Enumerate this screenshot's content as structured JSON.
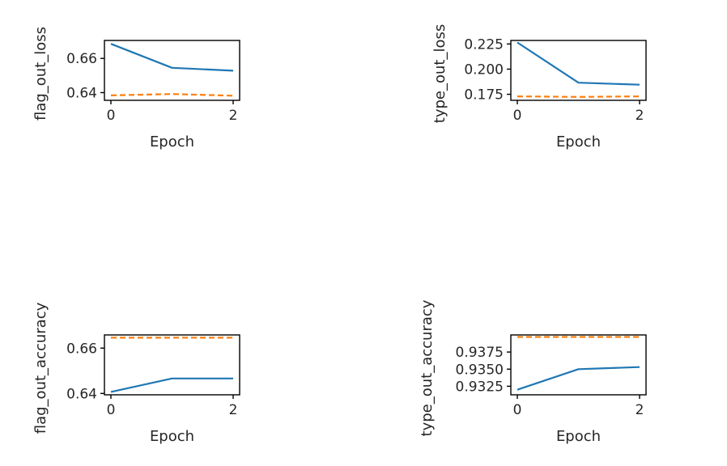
{
  "chart_data": [
    {
      "type": "line",
      "xlabel": "Epoch",
      "ylabel": "flag_out_loss",
      "x": [
        0,
        1,
        2
      ],
      "x_ticks": [
        "0",
        "2"
      ],
      "ylim": [
        0.6355,
        0.6705
      ],
      "y_ticks": [
        "0.64",
        "0.66"
      ],
      "series": [
        {
          "values": [
            0.6685,
            0.6545,
            0.6528
          ],
          "color": "#1f77b4",
          "style": "solid"
        },
        {
          "values": [
            0.6384,
            0.6392,
            0.6382
          ],
          "color": "#ff7f0e",
          "style": "dashed"
        }
      ],
      "grid": false,
      "legend": "none"
    },
    {
      "type": "line",
      "xlabel": "Epoch",
      "ylabel": "type_out_loss",
      "x": [
        0,
        1,
        2
      ],
      "x_ticks": [
        "0",
        "2"
      ],
      "ylim": [
        0.169,
        0.2285
      ],
      "y_ticks": [
        "0.225",
        "0.200",
        "0.175"
      ],
      "series": [
        {
          "values": [
            0.2265,
            0.1865,
            0.1845
          ],
          "color": "#1f77b4",
          "style": "solid"
        },
        {
          "values": [
            0.1729,
            0.1724,
            0.1729
          ],
          "color": "#ff7f0e",
          "style": "dashed"
        }
      ],
      "grid": false,
      "legend": "none"
    },
    {
      "type": "line",
      "xlabel": "Epoch",
      "ylabel": "flag_out_accuracy",
      "x": [
        0,
        1,
        2
      ],
      "x_ticks": [
        "0",
        "2"
      ],
      "ylim": [
        0.6394,
        0.6658
      ],
      "y_ticks": [
        "0.66",
        "0.64"
      ],
      "series": [
        {
          "values": [
            0.6407,
            0.6466,
            0.6466
          ],
          "color": "#1f77b4",
          "style": "solid"
        },
        {
          "values": [
            0.6646,
            0.6646,
            0.6646
          ],
          "color": "#ff7f0e",
          "style": "dashed"
        }
      ],
      "grid": false,
      "legend": "none"
    },
    {
      "type": "line",
      "xlabel": "Epoch",
      "ylabel": "type_out_accuracy",
      "x": [
        0,
        1,
        2
      ],
      "x_ticks": [
        "0",
        "2"
      ],
      "ylim": [
        0.93125,
        0.94
      ],
      "y_ticks": [
        "0.9375",
        "0.9350",
        "0.9325"
      ],
      "series": [
        {
          "values": [
            0.932,
            0.935,
            0.9353
          ],
          "color": "#1f77b4",
          "style": "solid"
        },
        {
          "values": [
            0.9397,
            0.9397,
            0.9397
          ],
          "color": "#ff7f0e",
          "style": "dashed"
        }
      ],
      "grid": false,
      "legend": "none"
    }
  ]
}
